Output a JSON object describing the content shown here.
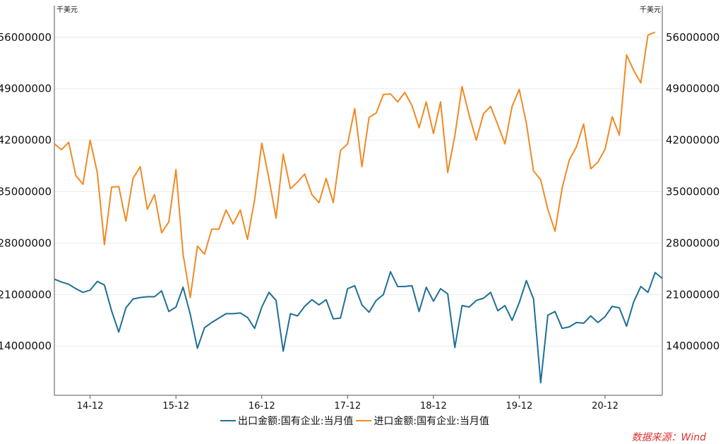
{
  "chart_data": {
    "type": "line",
    "unit_left": "千美元",
    "unit_right": "千美元",
    "y_ticks": [
      "56000000",
      "49000000",
      "42000000",
      "35000000",
      "28000000",
      "21000000",
      "14000000"
    ],
    "y_tick_values": [
      56000000,
      49000000,
      42000000,
      35000000,
      28000000,
      21000000,
      14000000
    ],
    "ylim": [
      7300000,
      60300000
    ],
    "x_ticks": [
      "14-12",
      "15-12",
      "16-12",
      "17-12",
      "18-12",
      "19-12",
      "20-12"
    ],
    "x_tick_indices": [
      5,
      17,
      29,
      41,
      53,
      65,
      77
    ],
    "grid": true,
    "legend_position": "bottom",
    "series": [
      {
        "name": "出口金额:国有企业:当月值",
        "color": "#1f6f96",
        "values": [
          23100000,
          22700000,
          22400000,
          21800000,
          21300000,
          21600000,
          22800000,
          22300000,
          18800000,
          15900000,
          19200000,
          20400000,
          20600000,
          20700000,
          20700000,
          21500000,
          18700000,
          19300000,
          22000000,
          18300000,
          13700000,
          16500000,
          17200000,
          17800000,
          18400000,
          18400000,
          18500000,
          17900000,
          16400000,
          19300000,
          21300000,
          20200000,
          13300000,
          18400000,
          18100000,
          19400000,
          20300000,
          19600000,
          20300000,
          17700000,
          17800000,
          21800000,
          22200000,
          19600000,
          18600000,
          20200000,
          21000000,
          24100000,
          22100000,
          22100000,
          22200000,
          18700000,
          22000000,
          20100000,
          21800000,
          21100000,
          13800000,
          19500000,
          19300000,
          20200000,
          20500000,
          21300000,
          18800000,
          19500000,
          17500000,
          19900000,
          22900000,
          20400000,
          9000000,
          18200000,
          18700000,
          16400000,
          16600000,
          17200000,
          17100000,
          18100000,
          17200000,
          18000000,
          19400000,
          19200000,
          16700000,
          20000000,
          22100000,
          21300000,
          24000000,
          23200000
        ],
        "x_from": 0
      },
      {
        "name": "进口金额:国有企业:当月值",
        "color": "#f08a24",
        "values": [
          41500000,
          40700000,
          41700000,
          37200000,
          36000000,
          42000000,
          37600000,
          27800000,
          35600000,
          35700000,
          31000000,
          36800000,
          38400000,
          32600000,
          34600000,
          29400000,
          30900000,
          38000000,
          26500000,
          20600000,
          27600000,
          26500000,
          29900000,
          29900000,
          32500000,
          30600000,
          32500000,
          28500000,
          33900000,
          41600000,
          36800000,
          31400000,
          40100000,
          35400000,
          36300000,
          37400000,
          34600000,
          33500000,
          36800000,
          33500000,
          40600000,
          41500000,
          46300000,
          38400000,
          45100000,
          45700000,
          48200000,
          48300000,
          47200000,
          48500000,
          46700000,
          43700000,
          47200000,
          42900000,
          47200000,
          37600000,
          42600000,
          49300000,
          45400000,
          42000000,
          45600000,
          46600000,
          44100000,
          41500000,
          46600000,
          48900000,
          44300000,
          37800000,
          36600000,
          32600000,
          29600000,
          35500000,
          39300000,
          41100000,
          44200000,
          38100000,
          39000000,
          40800000,
          45200000,
          42700000,
          53600000,
          51500000,
          49800000,
          56300000,
          56700000
        ],
        "x_from": 0
      }
    ]
  },
  "footer": {
    "source": "数据来源：Wind",
    "source_color": "#e03030"
  }
}
